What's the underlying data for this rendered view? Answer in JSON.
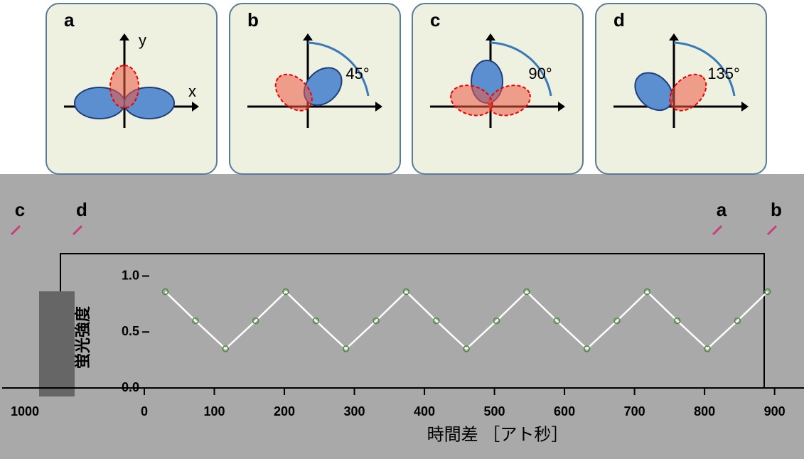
{
  "panels": [
    {
      "label": "a",
      "axis_y": "y",
      "axis_x": "x"
    },
    {
      "label": "b",
      "angle": "45°"
    },
    {
      "label": "c",
      "angle": "90°"
    },
    {
      "label": "d",
      "angle": "135°"
    }
  ],
  "markers": [
    "c",
    "d",
    "a",
    "b"
  ],
  "chart_data": {
    "type": "line",
    "y_label": "蛍光強度",
    "x_label": "時間差 ［アト秒］",
    "annotation": "1000",
    "x": [
      30,
      73,
      116,
      159,
      202,
      245,
      288,
      331,
      374,
      417,
      460,
      503,
      546,
      589,
      632,
      675,
      718,
      761,
      804,
      847,
      890
    ],
    "series": [
      {
        "color": "#ffffff",
        "values": [
          0.86,
          0.6,
          0.35,
          0.6,
          0.86,
          0.6,
          0.35,
          0.6,
          0.86,
          0.6,
          0.35,
          0.6,
          0.86,
          0.6,
          0.35,
          0.6,
          0.86,
          0.6,
          0.35,
          0.6,
          0.86
        ]
      }
    ],
    "xlim": [
      -203,
      942
    ],
    "ylim": [
      0,
      1.2
    ],
    "xticks": [
      0,
      100,
      200,
      300,
      400,
      500,
      600,
      700,
      800,
      900
    ],
    "yticks": [
      {
        "value": 0,
        "label": "0.0"
      },
      {
        "value": 0.5,
        "label": "0.5"
      },
      {
        "value": 1,
        "label": "1.0"
      }
    ]
  }
}
